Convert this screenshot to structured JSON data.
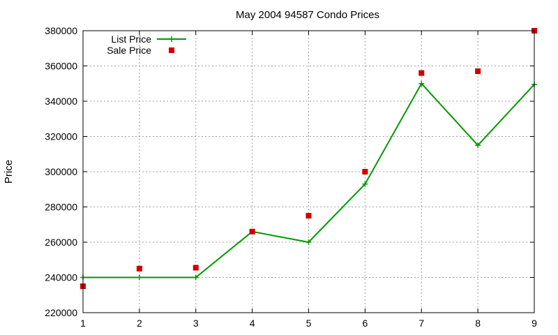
{
  "chart_data": {
    "type": "line",
    "title": "May 2004 94587 Condo Prices",
    "xlabel": "",
    "ylabel": "Price",
    "x": [
      1,
      2,
      3,
      4,
      5,
      6,
      7,
      8,
      9
    ],
    "xlim": [
      1,
      9
    ],
    "ylim": [
      220000,
      380000
    ],
    "xticks": [
      "1",
      "2",
      "3",
      "4",
      "5",
      "6",
      "7",
      "8",
      "9"
    ],
    "yticks": [
      "220000",
      "240000",
      "260000",
      "280000",
      "300000",
      "320000",
      "340000",
      "360000",
      "380000"
    ],
    "grid": true,
    "legend_position": "top-left",
    "series": [
      {
        "name": "List Price",
        "style": "line-with-plus-markers",
        "color": "#009900",
        "values": [
          240000,
          240000,
          240000,
          266000,
          260000,
          293000,
          350000,
          315000,
          349500
        ]
      },
      {
        "name": "Sale Price",
        "style": "square-points",
        "color": "#cc0000",
        "values": [
          235000,
          245000,
          245500,
          266000,
          275000,
          300000,
          356000,
          357000,
          380000
        ]
      }
    ]
  }
}
